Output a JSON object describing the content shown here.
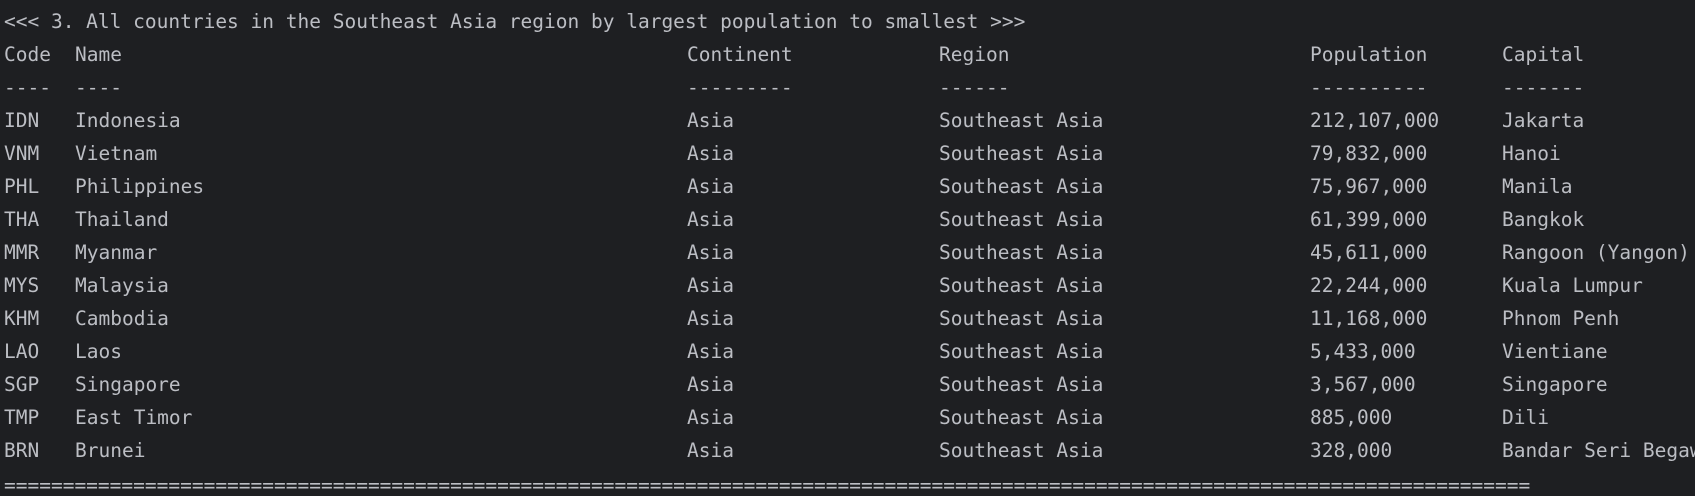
{
  "console": {
    "title": "<<< 3. All countries in the Southeast Asia region by largest population to smallest >>>",
    "headers": {
      "code": "Code",
      "name": "Name",
      "continent": "Continent",
      "region": "Region",
      "population": "Population",
      "capital": "Capital"
    },
    "underlines": {
      "code": "----",
      "name": "----",
      "continent": "---------",
      "region": "------",
      "population": "----------",
      "capital": "-------"
    },
    "rows": [
      {
        "code": "IDN",
        "name": "Indonesia",
        "continent": "Asia",
        "region": "Southeast Asia",
        "population": "212,107,000",
        "capital": "Jakarta"
      },
      {
        "code": "VNM",
        "name": "Vietnam",
        "continent": "Asia",
        "region": "Southeast Asia",
        "population": "79,832,000",
        "capital": "Hanoi"
      },
      {
        "code": "PHL",
        "name": "Philippines",
        "continent": "Asia",
        "region": "Southeast Asia",
        "population": "75,967,000",
        "capital": "Manila"
      },
      {
        "code": "THA",
        "name": "Thailand",
        "continent": "Asia",
        "region": "Southeast Asia",
        "population": "61,399,000",
        "capital": "Bangkok"
      },
      {
        "code": "MMR",
        "name": "Myanmar",
        "continent": "Asia",
        "region": "Southeast Asia",
        "population": "45,611,000",
        "capital": "Rangoon (Yangon)"
      },
      {
        "code": "MYS",
        "name": "Malaysia",
        "continent": "Asia",
        "region": "Southeast Asia",
        "population": "22,244,000",
        "capital": "Kuala Lumpur"
      },
      {
        "code": "KHM",
        "name": "Cambodia",
        "continent": "Asia",
        "region": "Southeast Asia",
        "population": "11,168,000",
        "capital": "Phnom Penh"
      },
      {
        "code": "LAO",
        "name": "Laos",
        "continent": "Asia",
        "region": "Southeast Asia",
        "population": "5,433,000",
        "capital": "Vientiane"
      },
      {
        "code": "SGP",
        "name": "Singapore",
        "continent": "Asia",
        "region": "Southeast Asia",
        "population": "3,567,000",
        "capital": "Singapore"
      },
      {
        "code": "TMP",
        "name": "East Timor",
        "continent": "Asia",
        "region": "Southeast Asia",
        "population": "885,000",
        "capital": "Dili"
      },
      {
        "code": "BRN",
        "name": "Brunei",
        "continent": "Asia",
        "region": "Southeast Asia",
        "population": "328,000",
        "capital": "Bandar Seri Begawan"
      }
    ],
    "separator": "=================================================================================================================================="
  }
}
